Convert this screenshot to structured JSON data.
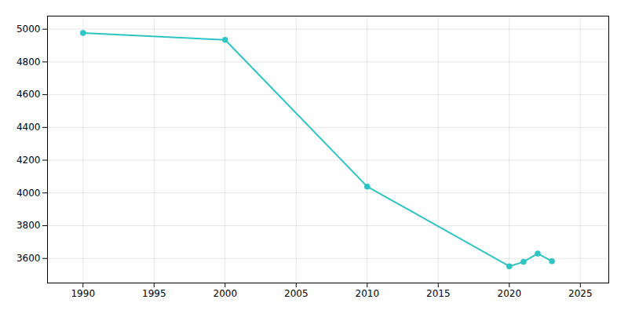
{
  "chart_data": {
    "type": "line",
    "x": [
      1990,
      2000,
      2010,
      2020,
      2021,
      2022,
      2023
    ],
    "values": [
      4977,
      4935,
      4039,
      3552,
      3579,
      3630,
      3583
    ],
    "color": "#2ec4c4",
    "marker": "circle",
    "xlim": [
      1987.5,
      2027
    ],
    "ylim": [
      3450,
      5080
    ],
    "xticks": [
      1990,
      1995,
      2000,
      2005,
      2010,
      2015,
      2020,
      2025
    ],
    "yticks": [
      3600,
      3800,
      4000,
      4200,
      4400,
      4600,
      4800,
      5000
    ],
    "grid": true
  }
}
